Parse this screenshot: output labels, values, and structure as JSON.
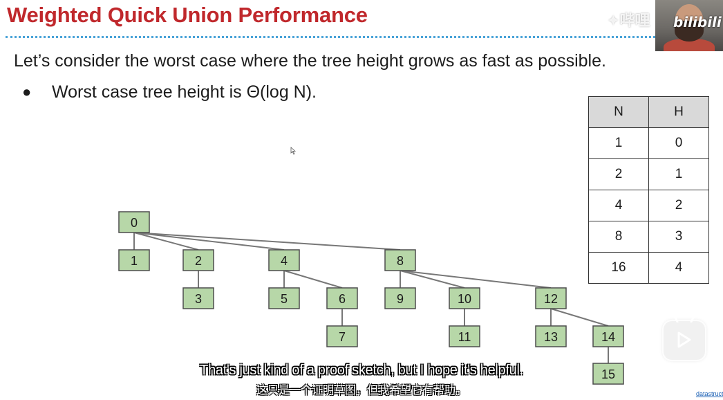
{
  "slide": {
    "title": "Weighted Quick Union Performance",
    "intro": "Let’s consider the worst case where the tree height grows as fast as possible.",
    "bullet_symbol": "●",
    "bullet": "Worst case tree height is Θ(log N)."
  },
  "table": {
    "headers": [
      "N",
      "H"
    ],
    "rows": [
      [
        "1",
        "0"
      ],
      [
        "2",
        "1"
      ],
      [
        "4",
        "2"
      ],
      [
        "8",
        "3"
      ],
      [
        "16",
        "4"
      ]
    ]
  },
  "tree": {
    "nodes": [
      "0",
      "1",
      "2",
      "3",
      "4",
      "5",
      "6",
      "7",
      "8",
      "9",
      "10",
      "11",
      "12",
      "13",
      "14",
      "15"
    ],
    "edges": [
      [
        "0",
        "1"
      ],
      [
        "0",
        "2"
      ],
      [
        "0",
        "4"
      ],
      [
        "0",
        "8"
      ],
      [
        "2",
        "3"
      ],
      [
        "4",
        "5"
      ],
      [
        "4",
        "6"
      ],
      [
        "6",
        "7"
      ],
      [
        "8",
        "9"
      ],
      [
        "8",
        "10"
      ],
      [
        "8",
        "12"
      ],
      [
        "10",
        "11"
      ],
      [
        "12",
        "13"
      ],
      [
        "12",
        "14"
      ],
      [
        "14",
        "15"
      ]
    ],
    "colors": {
      "node_fill": "#b7d7a8",
      "node_stroke": "#4d4d4d",
      "edge": "#777777"
    }
  },
  "subtitles": {
    "english": "That's just kind of a proof sketch, but I hope it's helpful.",
    "chinese": "这只是一个证明草图，但我希望它有帮助。"
  },
  "overlay": {
    "watermark": "✦哔哩",
    "webcam_logo": "bilibili",
    "link_text": "datastructur"
  },
  "colors": {
    "title": "#c0282c",
    "rule": "#4aa3d8",
    "table_header_bg": "#d9d9d9"
  }
}
